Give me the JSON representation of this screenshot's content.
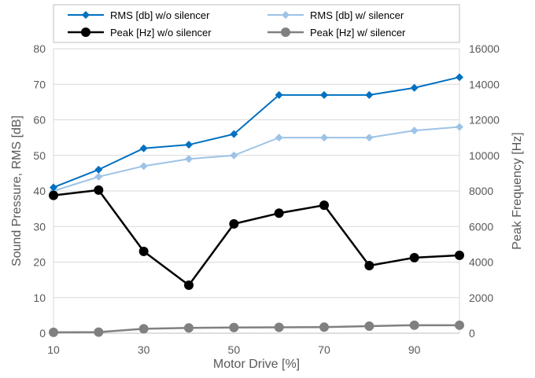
{
  "chart_data": {
    "type": "line",
    "title": "",
    "xlabel": "Motor Drive [%]",
    "ylabel_left": "Sound Pressure,  RMS [dB]",
    "ylabel_right": "Peak Frequency [Hz]",
    "x": [
      10,
      20,
      30,
      40,
      50,
      60,
      70,
      80,
      90,
      100
    ],
    "xticks": [
      10,
      30,
      50,
      70,
      90
    ],
    "xlim": [
      10,
      100
    ],
    "ylim_left": [
      0,
      80
    ],
    "yticks_left": [
      0,
      10,
      20,
      30,
      40,
      50,
      60,
      70,
      80
    ],
    "ylim_right": [
      0,
      16000
    ],
    "yticks_right": [
      0,
      2000,
      4000,
      6000,
      8000,
      10000,
      12000,
      14000,
      16000
    ],
    "grid": "horizontal",
    "legend_position": "top",
    "series": [
      {
        "name": "RMS [db] w/o silencer",
        "axis": "left",
        "color": "#0070C0",
        "marker": "diamond",
        "values": [
          41,
          46,
          52,
          53,
          56,
          67,
          67,
          67,
          69,
          72
        ]
      },
      {
        "name": "RMS [db] w/ silencer",
        "axis": "left",
        "color": "#9DC3E6",
        "marker": "diamond",
        "values": [
          40,
          44,
          47,
          49,
          50,
          55,
          55,
          55,
          57,
          58
        ]
      },
      {
        "name": "Peak [Hz] w/o silencer",
        "axis": "right",
        "color": "#000000",
        "marker": "circle",
        "values": [
          7750,
          8050,
          4600,
          2700,
          6150,
          6750,
          7200,
          3800,
          4250,
          4380
        ]
      },
      {
        "name": "Peak [Hz] w/ silencer",
        "axis": "right",
        "color": "#808080",
        "marker": "circle",
        "values": [
          50,
          60,
          250,
          300,
          320,
          330,
          340,
          400,
          450,
          450
        ]
      }
    ]
  }
}
